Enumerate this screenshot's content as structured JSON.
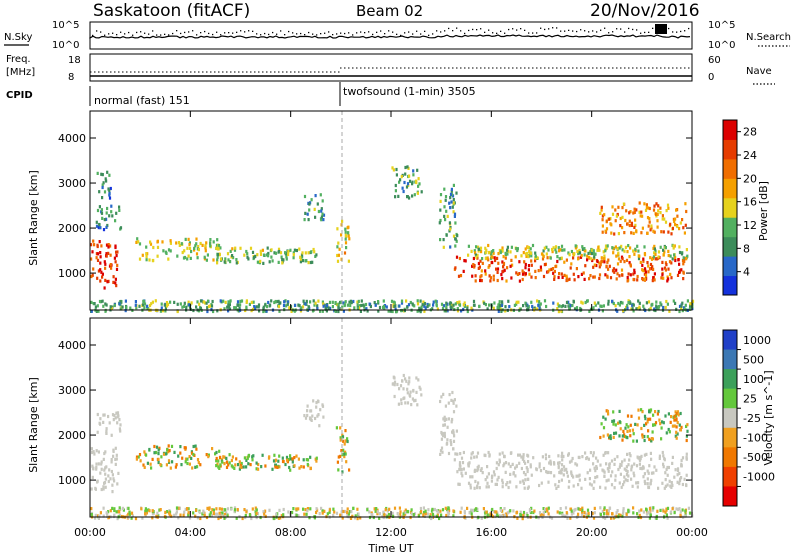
{
  "header": {
    "station": "Saskatoon (fitACF)",
    "beam": "Beam 02",
    "date": "20/Nov/2016"
  },
  "summary": {
    "nsky_label": "N.Sky",
    "nsearch_label": "N.Search",
    "freq_label": "Freq.",
    "freq_unit": "[MHz]",
    "nave_label": "Nave",
    "cpid_label": "CPID",
    "left_ticks_top": [
      "10^5",
      "10^0"
    ],
    "right_ticks_top": [
      "10^5",
      "10^0"
    ],
    "left_ticks_mid": [
      "18",
      "8"
    ],
    "right_ticks_mid": [
      "60",
      "0"
    ],
    "cpid_modes": [
      {
        "label": "normal (fast) 151",
        "start_hour": 0
      },
      {
        "label": "twofsound (1-min) 3505",
        "start_hour": 9.9
      }
    ]
  },
  "chart_data": [
    {
      "type": "heatmap",
      "title": "",
      "xlabel": "Time UT",
      "ylabel": "Slant Range [km]",
      "xlim_hours": [
        0,
        24
      ],
      "ylim_km": [
        180,
        4600
      ],
      "x_ticks": [
        "00:00",
        "04:00",
        "08:00",
        "12:00",
        "16:00",
        "20:00",
        "00:00"
      ],
      "y_ticks": [
        1000,
        2000,
        3000,
        4000
      ],
      "colorbar": {
        "label": "Power [dB]",
        "ticks": [
          4,
          8,
          12,
          16,
          20,
          24,
          28
        ],
        "range": [
          0,
          30
        ],
        "colors": [
          "#1432dc",
          "#2868c8",
          "#3c8c5a",
          "#52b060",
          "#e6d21e",
          "#f5a000",
          "#f06e00",
          "#e63c00",
          "#dc0000"
        ]
      },
      "echo_regions": [
        {
          "t0": 0.0,
          "t1": 1.1,
          "r0": 700,
          "r1": 1750,
          "p": 26
        },
        {
          "t0": 0.2,
          "t1": 1.2,
          "r0": 2000,
          "r1": 2550,
          "p": 8
        },
        {
          "t0": 0.2,
          "t1": 0.8,
          "r0": 2700,
          "r1": 3300,
          "p": 7
        },
        {
          "t0": 1.8,
          "t1": 5.2,
          "r0": 1300,
          "r1": 1800,
          "p": 15
        },
        {
          "t0": 5.0,
          "t1": 9.0,
          "r0": 1250,
          "r1": 1600,
          "p": 12
        },
        {
          "t0": 8.5,
          "t1": 9.3,
          "r0": 2200,
          "r1": 2800,
          "p": 9
        },
        {
          "t0": 9.8,
          "t1": 10.3,
          "r0": 1200,
          "r1": 2200,
          "p": 16
        },
        {
          "t0": 12.0,
          "t1": 13.2,
          "r0": 2700,
          "r1": 3400,
          "p": 10
        },
        {
          "t0": 13.9,
          "t1": 14.6,
          "r0": 1600,
          "r1": 3000,
          "p": 10
        },
        {
          "t0": 14.5,
          "t1": 23.8,
          "r0": 850,
          "r1": 1400,
          "p": 24
        },
        {
          "t0": 15.0,
          "t1": 23.8,
          "r0": 1350,
          "r1": 1650,
          "p": 14
        },
        {
          "t0": 20.3,
          "t1": 23.8,
          "r0": 1900,
          "r1": 2600,
          "p": 20
        },
        {
          "t0": 0.0,
          "t1": 24.0,
          "r0": 180,
          "r1": 420,
          "p": 10
        }
      ]
    },
    {
      "type": "heatmap",
      "title": "",
      "xlabel": "Time UT",
      "ylabel": "Slant Range [km]",
      "xlim_hours": [
        0,
        24
      ],
      "ylim_km": [
        180,
        4600
      ],
      "x_ticks": [
        "00:00",
        "04:00",
        "08:00",
        "12:00",
        "16:00",
        "20:00",
        "00:00"
      ],
      "y_ticks": [
        1000,
        2000,
        3000,
        4000
      ],
      "colorbar": {
        "label": "Velocity [m s^-1]",
        "ticks": [
          "1000",
          "500",
          "100",
          "25",
          "-25",
          "-100",
          "-500",
          "-1000"
        ],
        "colors": [
          "#2040c8",
          "#3c78b4",
          "#3ca05a",
          "#64c83c",
          "#c8c8c0",
          "#f0a020",
          "#f07800",
          "#f04000",
          "#e60000"
        ]
      },
      "echo_regions": [
        {
          "t0": 0.0,
          "t1": 1.1,
          "r0": 700,
          "r1": 1750,
          "v": "ground"
        },
        {
          "t0": 0.2,
          "t1": 1.2,
          "r0": 2000,
          "r1": 2550,
          "v": "ground"
        },
        {
          "t0": 1.8,
          "t1": 5.2,
          "r0": 1300,
          "r1": 1800,
          "v": "-100"
        },
        {
          "t0": 5.0,
          "t1": 9.0,
          "r0": 1250,
          "r1": 1600,
          "v": "-100"
        },
        {
          "t0": 8.5,
          "t1": 9.3,
          "r0": 2200,
          "r1": 2800,
          "v": "ground"
        },
        {
          "t0": 9.8,
          "t1": 10.3,
          "r0": 1200,
          "r1": 2200,
          "v": "-100"
        },
        {
          "t0": 12.0,
          "t1": 13.2,
          "r0": 2700,
          "r1": 3400,
          "v": "ground"
        },
        {
          "t0": 13.9,
          "t1": 14.6,
          "r0": 1600,
          "r1": 3000,
          "v": "ground"
        },
        {
          "t0": 14.5,
          "t1": 23.8,
          "r0": 850,
          "r1": 1650,
          "v": "ground"
        },
        {
          "t0": 20.3,
          "t1": 23.8,
          "r0": 1900,
          "r1": 2600,
          "v": "-100"
        },
        {
          "t0": 0.0,
          "t1": 24.0,
          "r0": 180,
          "r1": 420,
          "v": "-25"
        }
      ]
    }
  ]
}
